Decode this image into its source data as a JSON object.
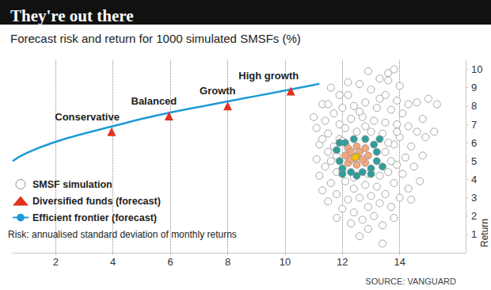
{
  "chart_data": {
    "type": "scatter",
    "title": "They're out there",
    "subtitle": "Forecast risk and return for 1000 simulated SMSFs (%)",
    "ylabel": "Return",
    "note": "Risk: annualised standard deviation of monthly returns",
    "source": "SOURCE: VANGUARD",
    "xlim": [
      0.5,
      16.3
    ],
    "xticks": [
      2,
      4,
      6,
      8,
      10,
      12,
      14
    ],
    "ylim": [
      0,
      10.5
    ],
    "yticks": [
      1,
      2,
      3,
      4,
      5,
      6,
      7,
      8,
      9,
      10
    ],
    "grid": true,
    "legend": "bottom-left",
    "series": [
      {
        "name": "SMSF simulation",
        "type": "scatter",
        "marker": "circle",
        "values": [
          [
            11.0,
            7.4
          ],
          [
            11.3,
            8.1
          ],
          [
            11.6,
            9.0
          ],
          [
            11.9,
            8.6
          ],
          [
            12.2,
            9.3
          ],
          [
            12.6,
            9.2
          ],
          [
            13.0,
            8.9
          ],
          [
            13.3,
            9.5
          ],
          [
            13.6,
            9.8
          ],
          [
            13.8,
            10.0
          ],
          [
            13.5,
            8.6
          ],
          [
            13.9,
            8.3
          ],
          [
            14.3,
            8.1
          ],
          [
            14.6,
            8.2
          ],
          [
            15.0,
            8.4
          ],
          [
            14.1,
            7.6
          ],
          [
            13.7,
            7.8
          ],
          [
            13.2,
            7.9
          ],
          [
            12.8,
            8.2
          ],
          [
            12.4,
            8.0
          ],
          [
            12.0,
            7.9
          ],
          [
            11.7,
            7.6
          ],
          [
            11.4,
            7.2
          ],
          [
            11.1,
            6.8
          ],
          [
            11.5,
            6.5
          ],
          [
            11.9,
            7.0
          ],
          [
            12.3,
            7.3
          ],
          [
            12.7,
            7.4
          ],
          [
            13.1,
            7.2
          ],
          [
            13.5,
            7.1
          ],
          [
            13.9,
            7.0
          ],
          [
            14.3,
            6.9
          ],
          [
            14.6,
            6.6
          ],
          [
            14.9,
            6.3
          ],
          [
            11.2,
            5.9
          ],
          [
            11.5,
            5.5
          ],
          [
            11.1,
            5.1
          ],
          [
            11.4,
            4.7
          ],
          [
            11.2,
            4.2
          ],
          [
            11.6,
            3.8
          ],
          [
            11.9,
            6.2
          ],
          [
            14.0,
            6.3
          ],
          [
            14.4,
            5.8
          ],
          [
            14.2,
            5.2
          ],
          [
            14.5,
            4.7
          ],
          [
            14.1,
            4.3
          ],
          [
            13.8,
            3.8
          ],
          [
            14.3,
            3.5
          ],
          [
            11.8,
            4.4
          ],
          [
            12.1,
            3.9
          ],
          [
            12.4,
            3.5
          ],
          [
            12.8,
            3.7
          ],
          [
            13.2,
            3.6
          ],
          [
            13.5,
            3.2
          ],
          [
            13.0,
            3.1
          ],
          [
            12.6,
            3.0
          ],
          [
            12.2,
            2.9
          ],
          [
            11.8,
            3.2
          ],
          [
            11.5,
            2.8
          ],
          [
            12.0,
            2.4
          ],
          [
            12.4,
            2.2
          ],
          [
            12.9,
            2.5
          ],
          [
            13.3,
            2.7
          ],
          [
            13.7,
            2.5
          ],
          [
            13.1,
            2.0
          ],
          [
            12.7,
            1.8
          ],
          [
            12.3,
            1.6
          ],
          [
            12.9,
            1.3
          ],
          [
            13.4,
            1.5
          ],
          [
            12.6,
            0.9
          ],
          [
            13.4,
            0.5
          ],
          [
            11.8,
            1.9
          ],
          [
            13.8,
            1.9
          ],
          [
            14.4,
            2.9
          ],
          [
            14.7,
            3.9
          ],
          [
            15.2,
            6.6
          ],
          [
            14.8,
            7.3
          ],
          [
            11.6,
            5.0
          ],
          [
            13.6,
            4.4
          ],
          [
            13.8,
            5.9
          ],
          [
            13.9,
            6.6
          ],
          [
            11.3,
            6.2
          ],
          [
            12.5,
            6.6
          ],
          [
            12.1,
            6.8
          ],
          [
            13.0,
            6.6
          ],
          [
            13.4,
            6.5
          ],
          [
            12.8,
            6.9
          ],
          [
            12.0,
            4.5
          ],
          [
            13.3,
            4.2
          ],
          [
            12.4,
            4.1
          ],
          [
            12.9,
            4.3
          ],
          [
            11.7,
            5.8
          ],
          [
            12.0,
            6.1
          ],
          [
            13.6,
            6.0
          ],
          [
            13.7,
            5.0
          ],
          [
            13.5,
            5.5
          ],
          [
            11.8,
            5.3
          ],
          [
            12.2,
            8.6
          ],
          [
            13.3,
            8.4
          ],
          [
            14.0,
            9.1
          ],
          [
            11.5,
            8.1
          ],
          [
            15.3,
            8.1
          ],
          [
            14.8,
            5.3
          ],
          [
            12.6,
            7.7
          ],
          [
            13.9,
            4.8
          ],
          [
            12.9,
            9.9
          ],
          [
            13.6,
            9.4
          ],
          [
            11.3,
            3.4
          ],
          [
            14.0,
            3.0
          ],
          [
            11.8,
            5.6
          ],
          [
            11.9,
            5.0
          ],
          [
            12.0,
            4.6
          ],
          [
            12.3,
            4.4
          ],
          [
            12.7,
            4.4
          ],
          [
            13.0,
            4.6
          ],
          [
            13.2,
            5.0
          ],
          [
            13.2,
            5.5
          ],
          [
            13.1,
            5.9
          ],
          [
            12.8,
            6.2
          ],
          [
            12.4,
            6.2
          ],
          [
            12.1,
            6.0
          ],
          [
            11.9,
            6.0
          ],
          [
            13.3,
            6.2
          ],
          [
            12.0,
            4.3
          ],
          [
            12.5,
            4.2
          ],
          [
            13.0,
            4.3
          ],
          [
            13.4,
            4.7
          ],
          [
            12.1,
            5.3
          ],
          [
            12.2,
            4.9
          ],
          [
            12.5,
            4.8
          ],
          [
            12.8,
            4.9
          ],
          [
            12.9,
            5.3
          ],
          [
            12.8,
            5.7
          ],
          [
            12.5,
            5.8
          ],
          [
            12.2,
            5.7
          ],
          [
            12.3,
            5.1
          ],
          [
            12.7,
            5.1
          ],
          [
            12.6,
            5.5
          ],
          [
            12.3,
            5.5
          ],
          [
            12.5,
            5.25
          ],
          [
            12.45,
            5.2
          ]
        ],
        "colors": [
          "#ffffff",
          "#ffffff",
          "#ffffff",
          "#ffffff",
          "#ffffff",
          "#ffffff",
          "#ffffff",
          "#ffffff",
          "#ffffff",
          "#ffffff",
          "#ffffff",
          "#ffffff",
          "#ffffff",
          "#ffffff",
          "#ffffff",
          "#ffffff",
          "#ffffff",
          "#ffffff",
          "#ffffff",
          "#ffffff",
          "#ffffff",
          "#ffffff",
          "#ffffff",
          "#ffffff",
          "#ffffff",
          "#ffffff",
          "#ffffff",
          "#ffffff",
          "#ffffff",
          "#ffffff",
          "#ffffff",
          "#ffffff",
          "#ffffff",
          "#ffffff",
          "#ffffff",
          "#ffffff",
          "#ffffff",
          "#ffffff",
          "#ffffff",
          "#ffffff",
          "#ffffff",
          "#ffffff",
          "#ffffff",
          "#ffffff",
          "#ffffff",
          "#ffffff",
          "#ffffff",
          "#ffffff",
          "#ffffff",
          "#ffffff",
          "#ffffff",
          "#ffffff",
          "#ffffff",
          "#ffffff",
          "#ffffff",
          "#ffffff",
          "#ffffff",
          "#ffffff",
          "#ffffff",
          "#ffffff",
          "#ffffff",
          "#ffffff",
          "#ffffff",
          "#ffffff",
          "#ffffff",
          "#ffffff",
          "#ffffff",
          "#ffffff",
          "#ffffff",
          "#ffffff",
          "#ffffff",
          "#ffffff",
          "#ffffff",
          "#ffffff",
          "#ffffff",
          "#ffffff",
          "#ffffff",
          "#ffffff",
          "#ffffff",
          "#ffffff",
          "#ffffff",
          "#ffffff",
          "#ffffff",
          "#ffffff",
          "#ffffff",
          "#ffffff",
          "#ffffff",
          "#ffffff",
          "#ffffff",
          "#ffffff",
          "#ffffff",
          "#ffffff",
          "#ffffff",
          "#ffffff",
          "#ffffff",
          "#ffffff",
          "#ffffff",
          "#ffffff",
          "#ffffff",
          "#ffffff",
          "#ffffff",
          "#ffffff",
          "#ffffff",
          "#ffffff",
          "#ffffff",
          "#ffffff",
          "#ffffff",
          "#ffffff",
          "#ffffff",
          "#2f9e9a",
          "#2f9e9a",
          "#2f9e9a",
          "#2f9e9a",
          "#2f9e9a",
          "#2f9e9a",
          "#2f9e9a",
          "#2f9e9a",
          "#2f9e9a",
          "#2f9e9a",
          "#2f9e9a",
          "#2f9e9a",
          "#2f9e9a",
          "#2f9e9a",
          "#2f9e9a",
          "#2f9e9a",
          "#2f9e9a",
          "#2f9e9a",
          "#f4a77c",
          "#f4a77c",
          "#f4a77c",
          "#f4a77c",
          "#f4a77c",
          "#f4a77c",
          "#f4a77c",
          "#f4a77c",
          "#f4a77c",
          "#f4a77c",
          "#f4a77c",
          "#f4a77c",
          "#f2c200",
          "#f2c200"
        ]
      },
      {
        "name": "Diversified funds (forecast)",
        "type": "scatter",
        "marker": "triangle",
        "color": "#e2311d",
        "values": [
          [
            3.95,
            6.6
          ],
          [
            5.95,
            7.45
          ],
          [
            8.0,
            8.0
          ],
          [
            10.2,
            8.82
          ]
        ],
        "point_labels": [
          "Conservative",
          "Balanced",
          "Growth",
          "High growth"
        ]
      },
      {
        "name": "Efficient frontier (forecast)",
        "type": "line",
        "color": "#1f9ad6",
        "line_style": "solid",
        "values": [
          [
            0.5,
            5.0
          ],
          [
            1,
            5.45
          ],
          [
            2,
            6.05
          ],
          [
            3,
            6.5
          ],
          [
            4,
            6.9
          ],
          [
            5,
            7.3
          ],
          [
            6,
            7.65
          ],
          [
            7,
            7.95
          ],
          [
            8,
            8.25
          ],
          [
            9,
            8.55
          ],
          [
            10,
            8.85
          ],
          [
            11,
            9.15
          ],
          [
            11.2,
            9.22
          ]
        ]
      }
    ]
  }
}
